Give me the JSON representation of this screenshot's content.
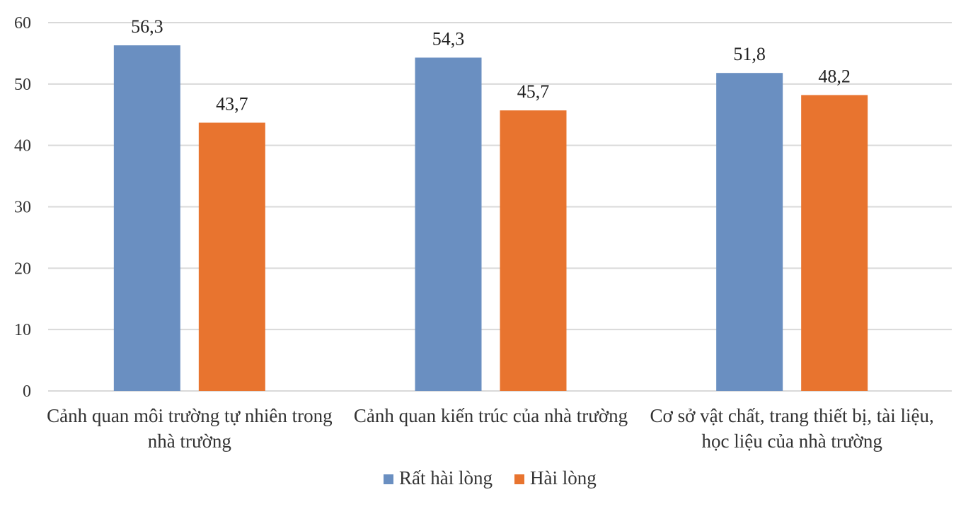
{
  "chart_data": {
    "type": "bar",
    "title": "",
    "xlabel": "",
    "ylabel": "",
    "ylim": [
      0,
      60
    ],
    "yticks": [
      0,
      10,
      20,
      30,
      40,
      50,
      60
    ],
    "grid": true,
    "legend_position": "bottom",
    "categories": [
      [
        "Cảnh quan  môi trường tự nhiên trong",
        "nhà trường"
      ],
      [
        "Cảnh quan  kiến trúc của nhà trường"
      ],
      [
        "Cơ sở vật chất, trang thiết bị, tài liệu,",
        "học liệu của nhà trường"
      ]
    ],
    "series": [
      {
        "name": "Rất hài lòng",
        "color": "#6a8fc1",
        "values": [
          56.3,
          54.3,
          51.8
        ],
        "labels": [
          "56,3",
          "54,3",
          "51,8"
        ]
      },
      {
        "name": "Hài lòng",
        "color": "#e8742f",
        "values": [
          43.7,
          45.7,
          48.2
        ],
        "labels": [
          "43,7",
          "45,7",
          "48,2"
        ]
      }
    ]
  }
}
